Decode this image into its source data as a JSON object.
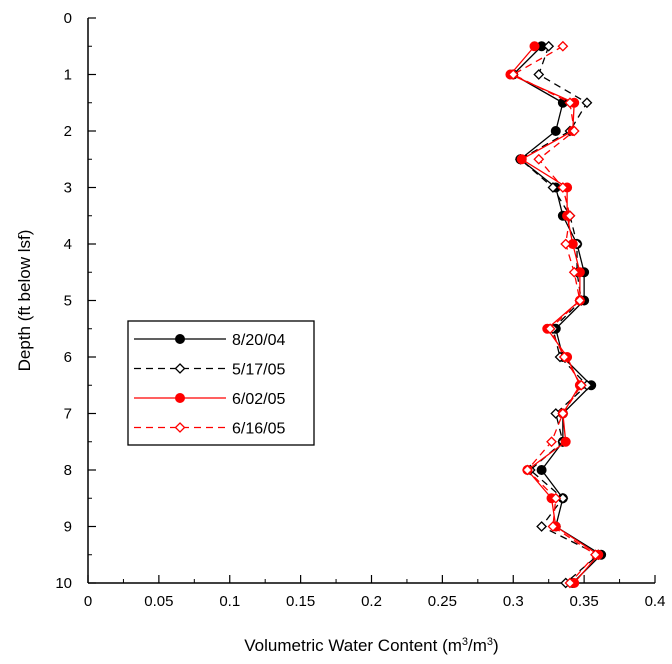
{
  "chart_data": {
    "type": "line",
    "orientation": "depth-profile",
    "xlabel": "Volumetric Water Content (m³/m³)",
    "ylabel": "Depth (ft below lsf)",
    "xlim": [
      0,
      0.4
    ],
    "ylim": [
      0,
      10
    ],
    "y_inverted": true,
    "x_ticks": [
      "0",
      "0.05",
      "0.1",
      "0.15",
      "0.2",
      "0.25",
      "0.3",
      "0.35",
      "0.4"
    ],
    "y_ticks": [
      "0",
      "1",
      "2",
      "3",
      "4",
      "5",
      "6",
      "7",
      "8",
      "9",
      "10"
    ],
    "grid": false,
    "legend_position": "middle-left",
    "series": [
      {
        "name": "8/20/04",
        "color": "#000000",
        "line": "solid",
        "marker": "filled-circle",
        "points": [
          [
            0.32,
            0.5
          ],
          [
            0.3,
            1.0
          ],
          [
            0.335,
            1.5
          ],
          [
            0.33,
            2.0
          ],
          [
            0.305,
            2.5
          ],
          [
            0.33,
            3.0
          ],
          [
            0.335,
            3.5
          ],
          [
            0.345,
            4.0
          ],
          [
            0.35,
            4.5
          ],
          [
            0.35,
            5.0
          ],
          [
            0.33,
            5.5
          ],
          [
            0.335,
            6.0
          ],
          [
            0.355,
            6.5
          ],
          [
            0.335,
            7.0
          ],
          [
            0.335,
            7.5
          ],
          [
            0.32,
            8.0
          ],
          [
            0.335,
            8.5
          ],
          [
            0.33,
            9.0
          ],
          [
            0.362,
            9.5
          ],
          [
            0.342,
            10.0
          ]
        ]
      },
      {
        "name": "5/17/05",
        "color": "#000000",
        "line": "dashed",
        "marker": "open-diamond",
        "points": [
          [
            0.325,
            0.5
          ],
          [
            0.318,
            1.0
          ],
          [
            0.352,
            1.5
          ],
          [
            0.34,
            2.0
          ],
          [
            0.305,
            2.5
          ],
          [
            0.328,
            3.0
          ],
          [
            0.34,
            3.5
          ],
          [
            0.345,
            4.0
          ],
          [
            0.345,
            4.5
          ],
          [
            0.348,
            5.0
          ],
          [
            0.328,
            5.5
          ],
          [
            0.333,
            6.0
          ],
          [
            0.352,
            6.5
          ],
          [
            0.33,
            7.0
          ],
          [
            0.335,
            7.5
          ],
          [
            0.312,
            8.0
          ],
          [
            0.335,
            8.5
          ],
          [
            0.32,
            9.0
          ],
          [
            0.36,
            9.5
          ],
          [
            0.337,
            10.0
          ]
        ]
      },
      {
        "name": "6/02/05",
        "color": "#ff0000",
        "line": "solid",
        "marker": "filled-circle",
        "points": [
          [
            0.315,
            0.5
          ],
          [
            0.298,
            1.0
          ],
          [
            0.343,
            1.5
          ],
          [
            0.342,
            2.0
          ],
          [
            0.306,
            2.5
          ],
          [
            0.338,
            3.0
          ],
          [
            0.338,
            3.5
          ],
          [
            0.342,
            4.0
          ],
          [
            0.347,
            4.5
          ],
          [
            0.347,
            5.0
          ],
          [
            0.324,
            5.5
          ],
          [
            0.338,
            6.0
          ],
          [
            0.347,
            6.5
          ],
          [
            0.335,
            7.0
          ],
          [
            0.337,
            7.5
          ],
          [
            0.31,
            8.0
          ],
          [
            0.327,
            8.5
          ],
          [
            0.33,
            9.0
          ],
          [
            0.36,
            9.5
          ],
          [
            0.343,
            10.0
          ]
        ]
      },
      {
        "name": "6/16/05",
        "color": "#ff0000",
        "line": "dashed",
        "marker": "open-diamond",
        "points": [
          [
            0.335,
            0.5
          ],
          [
            0.3,
            1.0
          ],
          [
            0.34,
            1.5
          ],
          [
            0.343,
            2.0
          ],
          [
            0.318,
            2.5
          ],
          [
            0.335,
            3.0
          ],
          [
            0.34,
            3.5
          ],
          [
            0.337,
            4.0
          ],
          [
            0.343,
            4.5
          ],
          [
            0.347,
            5.0
          ],
          [
            0.326,
            5.5
          ],
          [
            0.336,
            6.0
          ],
          [
            0.348,
            6.5
          ],
          [
            0.335,
            7.0
          ],
          [
            0.327,
            7.5
          ],
          [
            0.31,
            8.0
          ],
          [
            0.33,
            8.5
          ],
          [
            0.328,
            9.0
          ],
          [
            0.358,
            9.5
          ],
          [
            0.34,
            10.0
          ]
        ]
      }
    ]
  }
}
